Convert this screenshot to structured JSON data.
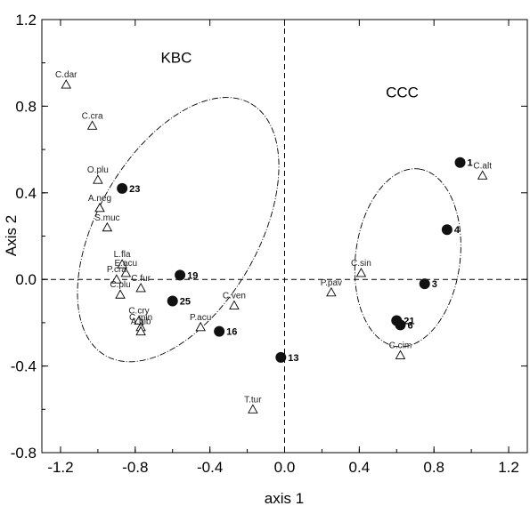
{
  "chart_data": {
    "type": "scatter",
    "title": "",
    "xlabel": "axis 1",
    "ylabel": "Axis 2",
    "xlim": [
      -1.3,
      1.3
    ],
    "ylim": [
      -0.8,
      1.2
    ],
    "xticks": [
      "-1.2",
      "-0.8",
      "-0.4",
      "0.0",
      "0.4",
      "0.8",
      "1.2"
    ],
    "yticks": [
      "-0.8",
      "-0.4",
      "0.0",
      "0.4",
      "0.8",
      "1.2"
    ],
    "xtick_values": [
      -1.2,
      -0.8,
      -0.4,
      0.0,
      0.4,
      0.8,
      1.2
    ],
    "ytick_values": [
      -0.8,
      -0.4,
      0.0,
      0.4,
      0.8,
      1.2
    ],
    "reference_lines": {
      "x": 0.0,
      "y": 0.0
    },
    "groups": [
      {
        "label": "KBC",
        "center": [
          -0.57,
          0.23
        ],
        "semi_axes": [
          0.78,
          0.43
        ],
        "angle_deg": -60
      },
      {
        "label": "CCC",
        "center": [
          0.66,
          0.1
        ],
        "semi_axes": [
          0.48,
          0.28
        ],
        "angle_deg": -83
      }
    ],
    "series": [
      {
        "marker": "filled-circle",
        "points": [
          {
            "label": "1",
            "x": 0.94,
            "y": 0.54
          },
          {
            "label": "4",
            "x": 0.87,
            "y": 0.23
          },
          {
            "label": "3",
            "x": 0.75,
            "y": -0.02
          },
          {
            "label": "21",
            "x": 0.6,
            "y": -0.19
          },
          {
            "label": "6",
            "x": 0.62,
            "y": -0.21
          },
          {
            "label": "23",
            "x": -0.87,
            "y": 0.42
          },
          {
            "label": "19",
            "x": -0.56,
            "y": 0.02
          },
          {
            "label": "25",
            "x": -0.6,
            "y": -0.1
          },
          {
            "label": "16",
            "x": -0.35,
            "y": -0.24
          },
          {
            "label": "13",
            "x": -0.02,
            "y": -0.36
          }
        ]
      },
      {
        "marker": "open-triangle",
        "points": [
          {
            "label": "C.dar",
            "x": -1.17,
            "y": 0.9
          },
          {
            "label": "C.cra",
            "x": -1.03,
            "y": 0.71
          },
          {
            "label": "O.plu",
            "x": -1.0,
            "y": 0.46
          },
          {
            "label": "A.neg",
            "x": -0.99,
            "y": 0.33
          },
          {
            "label": "S.muc",
            "x": -0.95,
            "y": 0.24
          },
          {
            "label": "L.fla",
            "x": -0.87,
            "y": 0.07
          },
          {
            "label": "E.acu",
            "x": -0.85,
            "y": 0.03
          },
          {
            "label": "P.cra",
            "x": -0.9,
            "y": 0.0
          },
          {
            "label": "C.fur",
            "x": -0.77,
            "y": -0.04
          },
          {
            "label": "C.plu",
            "x": -0.88,
            "y": -0.07
          },
          {
            "label": "C.cry",
            "x": -0.78,
            "y": -0.19
          },
          {
            "label": "C.min",
            "x": -0.77,
            "y": -0.22
          },
          {
            "label": "A.gib",
            "x": -0.77,
            "y": -0.24
          },
          {
            "label": "P.acu",
            "x": -0.45,
            "y": -0.22
          },
          {
            "label": "C.ven",
            "x": -0.27,
            "y": -0.12
          },
          {
            "label": "T.tur",
            "x": -0.17,
            "y": -0.6
          },
          {
            "label": "C.sin",
            "x": 0.41,
            "y": 0.03
          },
          {
            "label": "P.pav",
            "x": 0.25,
            "y": -0.06
          },
          {
            "label": "C.cim",
            "x": 0.62,
            "y": -0.35
          },
          {
            "label": "C.alt",
            "x": 1.06,
            "y": 0.48
          }
        ]
      }
    ]
  }
}
